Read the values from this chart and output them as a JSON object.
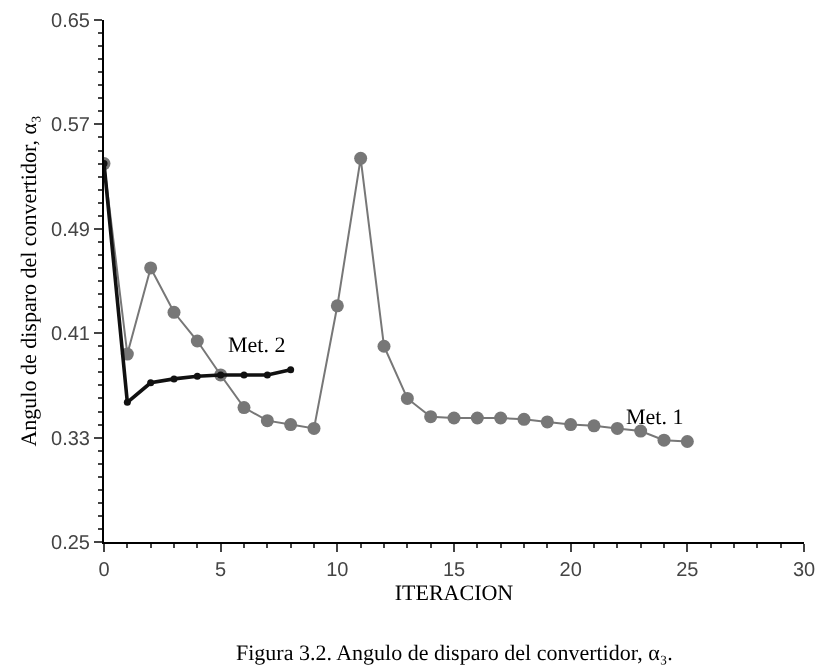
{
  "chart_data": {
    "type": "line",
    "xlabel": "ITERACION",
    "ylabel": "Angulo de disparo del convertidor, α₃",
    "annotations": [
      "Figura 3.2. Angulo de disparo del convertidor, α₃."
    ],
    "xlim": [
      0,
      30
    ],
    "xticks": [
      0,
      5,
      10,
      15,
      20,
      25,
      30
    ],
    "ylim": [
      0.25,
      0.65
    ],
    "yticks": [
      0.25,
      0.33,
      0.41,
      0.49,
      0.57,
      0.65
    ],
    "grid": false,
    "legend": false,
    "marker": "circle",
    "line_style": "solid",
    "series": [
      {
        "name": "Met. 1",
        "color": "#777777",
        "x": [
          0,
          1,
          2,
          3,
          4,
          5,
          6,
          7,
          8,
          9,
          10,
          11,
          12,
          13,
          14,
          15,
          16,
          17,
          18,
          19,
          20,
          21,
          22,
          23,
          24,
          25
        ],
        "values": [
          0.54,
          0.394,
          0.46,
          0.426,
          0.404,
          0.378,
          0.353,
          0.343,
          0.34,
          0.337,
          0.431,
          0.544,
          0.4,
          0.36,
          0.346,
          0.345,
          0.345,
          0.345,
          0.344,
          0.342,
          0.34,
          0.339,
          0.337,
          0.335,
          0.328,
          0.327
        ]
      },
      {
        "name": "Met. 2",
        "color": "#111111",
        "x": [
          0,
          1,
          2,
          3,
          4,
          5,
          6,
          7,
          8
        ],
        "values": [
          0.54,
          0.357,
          0.372,
          0.375,
          0.377,
          0.378,
          0.378,
          0.378,
          0.382
        ]
      }
    ]
  }
}
